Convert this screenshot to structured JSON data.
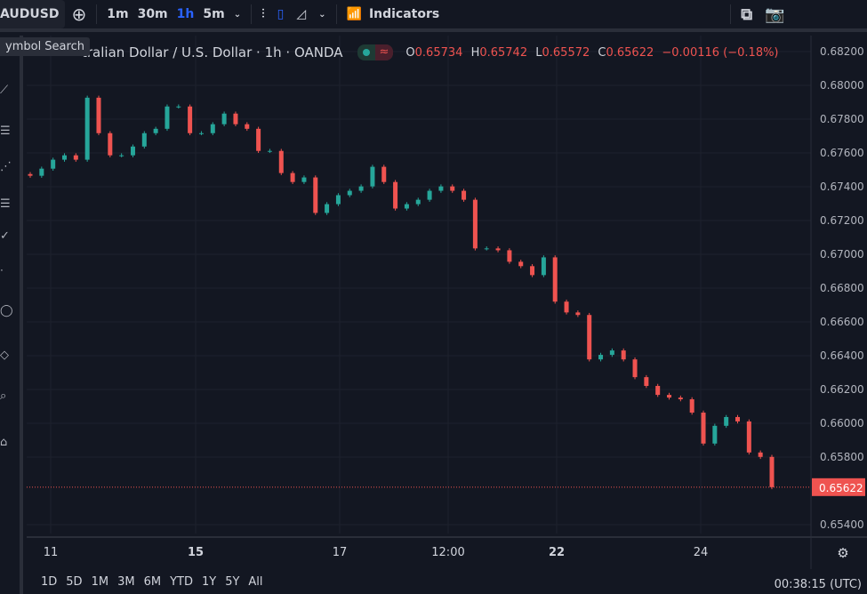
{
  "toolbar": {
    "symbol": "AUDUSD",
    "intervals": [
      "1m",
      "30m",
      "1h",
      "5m"
    ],
    "active_interval": "1h",
    "indicators": "Indicators"
  },
  "tooltip": "ymbol Search",
  "legend": {
    "title": "tralian Dollar / U.S. Dollar · 1h · OANDA",
    "o_label": "O",
    "o": "0.65734",
    "h_label": "H",
    "h": "0.65742",
    "l_label": "L",
    "l": "0.65572",
    "c_label": "C",
    "c": "0.65622",
    "change": "−0.00116 (−0.18%)"
  },
  "colors": {
    "up": "#26a69a",
    "down": "#ef5350",
    "background": "#131722",
    "accent": "#2962ff"
  },
  "ranges": [
    "1D",
    "5D",
    "1M",
    "3M",
    "6M",
    "YTD",
    "1Y",
    "5Y",
    "All"
  ],
  "clock": "00:38:15 (UTC)",
  "chart_data": {
    "type": "candlestick",
    "ylim": [
      0.6535,
      0.6825
    ],
    "y_ticks": [
      "0.68200",
      "0.68000",
      "0.67800",
      "0.67600",
      "0.67400",
      "0.67200",
      "0.67000",
      "0.66800",
      "0.66600",
      "0.66400",
      "0.66200",
      "0.66000",
      "0.65800",
      "0.65400"
    ],
    "x_ticks": [
      "11",
      "15",
      "17",
      "12:00",
      "22",
      "24"
    ],
    "last_price": "0.65622",
    "closes": [
      0.67465,
      0.67507,
      0.6756,
      0.67586,
      0.6756,
      0.67927,
      0.67717,
      0.67586,
      0.67586,
      0.67638,
      0.67717,
      0.67743,
      0.67875,
      0.67875,
      0.67717,
      0.67717,
      0.6777,
      0.67833,
      0.6777,
      0.67743,
      0.67612,
      0.67612,
      0.67481,
      0.67428,
      0.67455,
      0.67245,
      0.67297,
      0.6735,
      0.67376,
      0.67402,
      0.67518,
      0.67428,
      0.67271,
      0.67297,
      0.67323,
      0.67376,
      0.67402,
      0.67376,
      0.67323,
      0.67035,
      0.67035,
      0.67024,
      0.66956,
      0.6693,
      0.66877,
      0.66982,
      0.6672,
      0.66656,
      0.66641,
      0.66378,
      0.66405,
      0.66431,
      0.66378,
      0.66273,
      0.66221,
      0.66168,
      0.66152,
      0.66142,
      0.66063,
      0.6588,
      0.65985,
      0.66037,
      0.66011,
      0.65827,
      0.65801,
      0.65622
    ]
  }
}
